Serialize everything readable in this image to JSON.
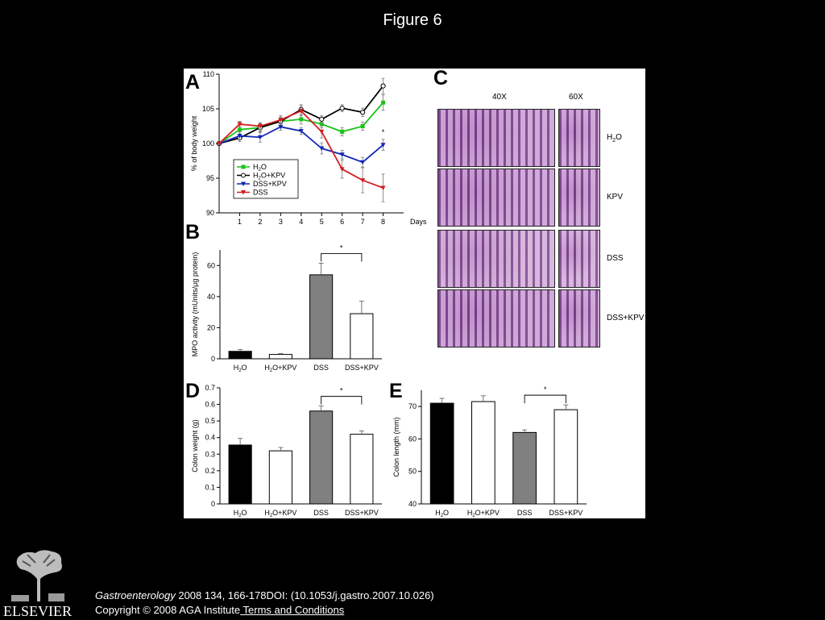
{
  "page": {
    "title": "Figure 6",
    "journal": "Gastroenterology",
    "citation": " 2008 134, 166-178DOI: (10.1053/j.gastro.2007.10.026)",
    "copyright": "Copyright © 2008 AGA Institute",
    "terms_link": " Terms and Conditions",
    "logo_text": "ELSEVIER"
  },
  "colors": {
    "h2o": "#18c418",
    "h2o_kpv": "#000000",
    "dss_kpv": "#1428b4",
    "dss": "#d21e1e",
    "bar_dss": "#808080"
  },
  "histology": {
    "label": "C",
    "columns": [
      "40X",
      "60X"
    ],
    "rows": [
      "H2O",
      "KPV",
      "DSS",
      "DSS+KPV"
    ]
  },
  "chart_data": [
    {
      "panel": "A",
      "type": "line",
      "ylabel": "% of body weight",
      "xlabel": "Days",
      "x": [
        0,
        1,
        2,
        3,
        4,
        5,
        6,
        7,
        8
      ],
      "x_tick_labels": [
        "1",
        "2",
        "3",
        "4",
        "5",
        "6",
        "7",
        "8"
      ],
      "ylim": [
        90,
        110
      ],
      "y_ticks": [
        "90",
        "95",
        "100",
        "105",
        "110"
      ],
      "legend_position": "lower-left",
      "significance": [
        {
          "x": 8,
          "label": "*"
        }
      ],
      "series": [
        {
          "name": "H2O",
          "marker": "square",
          "values": [
            100,
            102,
            102.3,
            103.2,
            103.5,
            102.8,
            101.7,
            102.5,
            105.9
          ],
          "errors": [
            0,
            0.6,
            0.6,
            0.6,
            0.7,
            0.5,
            0.6,
            0.6,
            1.1
          ]
        },
        {
          "name": "H2O+KPV",
          "marker": "circle",
          "values": [
            100,
            100.8,
            102.3,
            103.2,
            104.9,
            103.5,
            105.1,
            104.5,
            108.3
          ],
          "errors": [
            0,
            0.5,
            0.5,
            0.6,
            0.7,
            0.5,
            0.5,
            0.6,
            1.1
          ]
        },
        {
          "name": "DSS+KPV",
          "marker": "triangle-down",
          "values": [
            100,
            101.1,
            100.9,
            102.4,
            101.8,
            99.3,
            98.4,
            97.3,
            99.8
          ],
          "errors": [
            0,
            0.6,
            0.7,
            0.5,
            0.5,
            0.8,
            0.6,
            0.7,
            0.8
          ]
        },
        {
          "name": "DSS",
          "marker": "triangle-down",
          "values": [
            100,
            102.8,
            102.5,
            103.4,
            104.7,
            101.7,
            96.3,
            94.7,
            93.6
          ],
          "errors": [
            0,
            0.4,
            0.5,
            0.6,
            0.7,
            0.9,
            1.3,
            1.8,
            2.0
          ]
        }
      ]
    },
    {
      "panel": "B",
      "type": "bar",
      "ylabel": "MPO activity (mUnits/μg protein)",
      "categories": [
        "H2O",
        "H2O+KPV",
        "DSS",
        "DSS+KPV"
      ],
      "values": [
        4.8,
        2.8,
        54,
        29
      ],
      "errors": [
        1.2,
        0.5,
        7.5,
        8
      ],
      "ylim": [
        0,
        70
      ],
      "y_ticks": [
        "0",
        "20",
        "40",
        "60"
      ],
      "significance": {
        "from": 2,
        "to": 3,
        "label": "*"
      }
    },
    {
      "panel": "D",
      "type": "bar",
      "ylabel": "Colon weight (g)",
      "categories": [
        "H2O",
        "H2O+KPV",
        "DSS",
        "DSS+KPV"
      ],
      "values": [
        0.355,
        0.32,
        0.56,
        0.42
      ],
      "errors": [
        0.04,
        0.02,
        0.03,
        0.02
      ],
      "ylim": [
        0,
        0.7
      ],
      "y_ticks": [
        "0",
        "0.1",
        "0.2",
        "0.3",
        "0.4",
        "0.5",
        "0.6",
        "0.7"
      ],
      "significance": {
        "from": 2,
        "to": 3,
        "label": "*"
      }
    },
    {
      "panel": "E",
      "type": "bar",
      "ylabel": "Colon length (mm)",
      "categories": [
        "H2O",
        "H2O+KPV",
        "DSS",
        "DSS+KPV"
      ],
      "values": [
        71,
        71.5,
        62,
        69
      ],
      "errors": [
        1.5,
        1.8,
        0.8,
        1.5
      ],
      "ylim": [
        40,
        75
      ],
      "y_ticks": [
        "40",
        "50",
        "60",
        "70"
      ],
      "significance": {
        "from": 2,
        "to": 3,
        "label": "*"
      }
    }
  ]
}
